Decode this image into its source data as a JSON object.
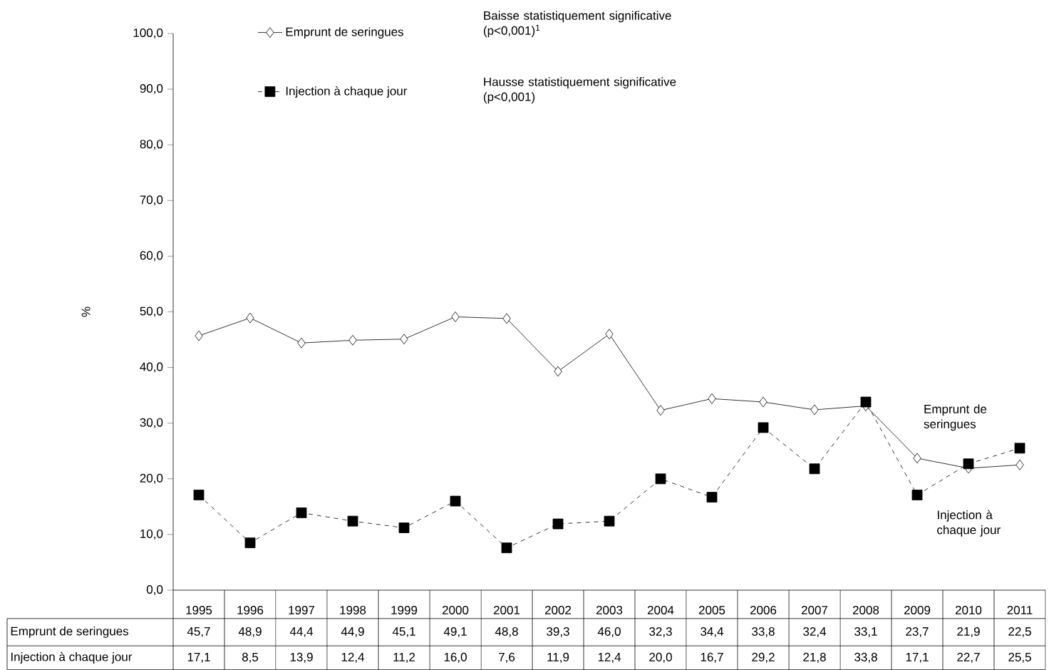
{
  "chart_data": {
    "type": "line",
    "ylabel": "%",
    "categories": [
      "1995",
      "1996",
      "1997",
      "1998",
      "1999",
      "2000",
      "2001",
      "2002",
      "2003",
      "2004",
      "2005",
      "2006",
      "2007",
      "2008",
      "2009",
      "2010",
      "2011"
    ],
    "series": [
      {
        "name": "Emprunt de seringues",
        "color": "#000000",
        "marker": "diamond",
        "line_style": "solid",
        "values": [
          45.7,
          48.9,
          44.4,
          44.9,
          45.1,
          49.1,
          48.8,
          39.3,
          46.0,
          32.3,
          34.4,
          33.8,
          32.4,
          33.1,
          23.7,
          21.9,
          22.5
        ],
        "value_labels": [
          "45,7",
          "48,9",
          "44,4",
          "44,9",
          "45,1",
          "49,1",
          "48,8",
          "39,3",
          "46,0",
          "32,3",
          "34,4",
          "33,8",
          "32,4",
          "33,1",
          "23,7",
          "21,9",
          "22,5"
        ]
      },
      {
        "name": "Injection à chaque jour",
        "color": "#000000",
        "marker": "square",
        "line_style": "dashed",
        "values": [
          17.1,
          8.5,
          13.9,
          12.4,
          11.2,
          16.0,
          7.6,
          11.9,
          12.4,
          20.0,
          16.7,
          29.2,
          21.8,
          33.8,
          17.1,
          22.7,
          25.5
        ],
        "value_labels": [
          "17,1",
          "8,5",
          "13,9",
          "12,4",
          "11,2",
          "16,0",
          "7,6",
          "11,9",
          "12,4",
          "20,0",
          "16,7",
          "29,2",
          "21,8",
          "33,8",
          "17,1",
          "22,7",
          "25,5"
        ]
      }
    ],
    "ylim": [
      0,
      100
    ],
    "yticks": [
      {
        "value": 0,
        "label": "0,0"
      },
      {
        "value": 10,
        "label": "10,0"
      },
      {
        "value": 20,
        "label": "20,0"
      },
      {
        "value": 30,
        "label": "30,0"
      },
      {
        "value": 40,
        "label": "40,0"
      },
      {
        "value": 50,
        "label": "50,0"
      },
      {
        "value": 60,
        "label": "60,0"
      },
      {
        "value": 70,
        "label": "70,0"
      },
      {
        "value": 80,
        "label": "80,0"
      },
      {
        "value": 90,
        "label": "90,0"
      },
      {
        "value": 100,
        "label": "100,0"
      }
    ],
    "annotations": [
      "Baisse statistiquement significative (p<0,001)$^{1}$",
      "Hausse statistiquement significative (p<0,001)",
      "Emprunt de seringues",
      "Injection à chaque jour"
    ],
    "legend": "top left",
    "grid": false
  }
}
